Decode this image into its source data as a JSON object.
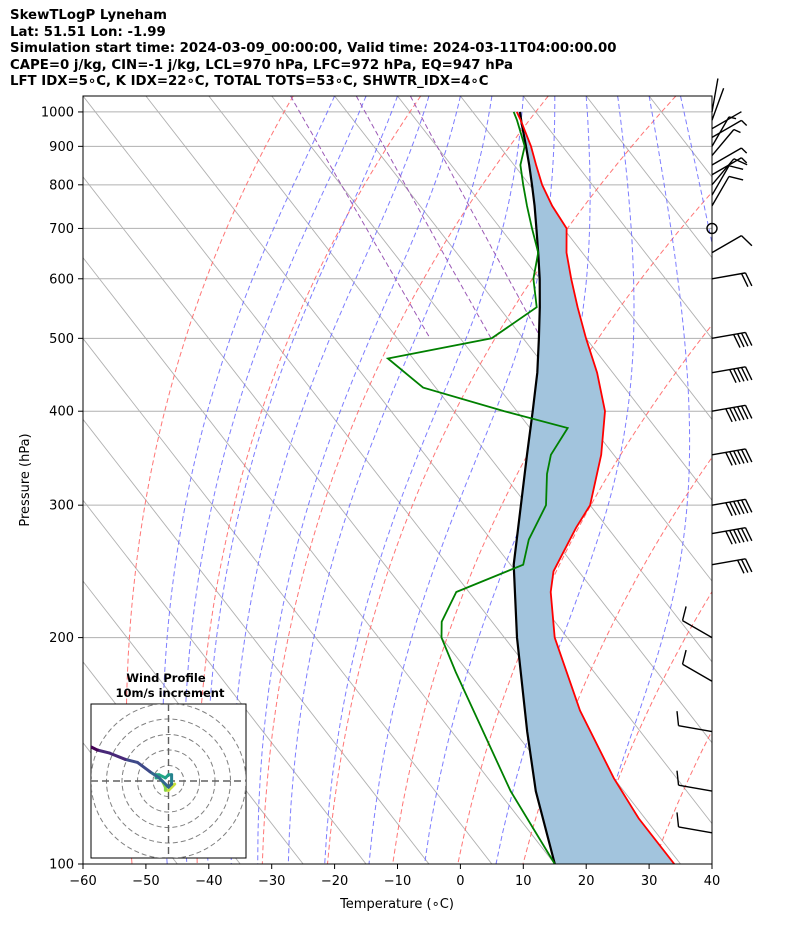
{
  "header": {
    "line1": "SkewTLogP Lyneham",
    "line2": "Lat: 51.51   Lon: -1.99",
    "line3": "Simulation start time: 2024-03-09_00:00:00, Valid time: 2024-03-11T04:00:00.00",
    "line4": "CAPE=0 j/kg, CIN=-1 j/kg, LCL=970 hPa, LFC=972 hPa, EQ=947 hPa",
    "line5": "LFT IDX=5∘C, K IDX=22∘C, TOTAL TOTS=53∘C, SHWTR_IDX=4∘C"
  },
  "colors": {
    "temperature": "#ff0000",
    "dewpoint": "#008000",
    "parcel": "#000000",
    "cape_fill": "#a2c4dd",
    "dry_adiabat": "#ff6666",
    "moist_adiabat": "#6666ff",
    "mixing_ratio": "#9b59b6",
    "isotherm": "#b0b0b0"
  },
  "chart_data": {
    "type": "line",
    "subtype": "skew-t log-p",
    "xlabel": "Temperature (∘C)",
    "ylabel": "Pressure (hPa)",
    "xlim": [
      -60,
      40
    ],
    "ylim": [
      1050,
      100
    ],
    "y_scale": "log",
    "x_ticks": [
      "−60",
      "−50",
      "−40",
      "−30",
      "−20",
      "−10",
      "0",
      "10",
      "20",
      "30",
      "40"
    ],
    "y_ticks": [
      100,
      200,
      300,
      400,
      500,
      600,
      700,
      800,
      900,
      1000
    ],
    "grid": true,
    "series": [
      {
        "role": "temperature",
        "points": [
          [
            1000,
            7.0
          ],
          [
            975,
            6.6
          ],
          [
            900,
            5.0
          ],
          [
            850,
            3.5
          ],
          [
            800,
            2.0
          ],
          [
            750,
            1.0
          ],
          [
            700,
            0.5
          ],
          [
            650,
            -2.5
          ],
          [
            600,
            -5.0
          ],
          [
            550,
            -7.5
          ],
          [
            500,
            -10.0
          ],
          [
            450,
            -12.5
          ],
          [
            400,
            -16.0
          ],
          [
            350,
            -22.0
          ],
          [
            300,
            -30.0
          ],
          [
            280,
            -35.0
          ],
          [
            260,
            -40.0
          ],
          [
            245,
            -44.0
          ],
          [
            230,
            -47.0
          ],
          [
            200,
            -52.0
          ],
          [
            160,
            -57.0
          ],
          [
            130,
            -60.0
          ],
          [
            115,
            -61.0
          ],
          [
            100,
            -61.0
          ]
        ]
      },
      {
        "role": "dewpoint",
        "points": [
          [
            1000,
            6.5
          ],
          [
            975,
            6.0
          ],
          [
            900,
            4.0
          ],
          [
            850,
            1.0
          ],
          [
            800,
            -1.0
          ],
          [
            750,
            -3.0
          ],
          [
            700,
            -5.0
          ],
          [
            650,
            -7.0
          ],
          [
            600,
            -11.0
          ],
          [
            550,
            -14.0
          ],
          [
            500,
            -25.0
          ],
          [
            470,
            -44.0
          ],
          [
            430,
            -42.0
          ],
          [
            400,
            -32.0
          ],
          [
            380,
            -24.0
          ],
          [
            350,
            -30.0
          ],
          [
            330,
            -33.0
          ],
          [
            300,
            -37.0
          ],
          [
            270,
            -44.0
          ],
          [
            250,
            -48.0
          ],
          [
            230,
            -62.0
          ],
          [
            210,
            -68.0
          ],
          [
            200,
            -70.0
          ],
          [
            180,
            -72.0
          ],
          [
            150,
            -75.0
          ],
          [
            125,
            -78.0
          ],
          [
            100,
            -80.0
          ]
        ]
      },
      {
        "role": "parcel",
        "points": [
          [
            1000,
            7.5
          ],
          [
            970,
            6.5
          ],
          [
            900,
            4.2
          ],
          [
            850,
            2.4
          ],
          [
            800,
            0.4
          ],
          [
            750,
            -1.8
          ],
          [
            700,
            -4.3
          ],
          [
            650,
            -7.0
          ],
          [
            600,
            -10.0
          ],
          [
            550,
            -13.5
          ],
          [
            500,
            -17.5
          ],
          [
            450,
            -22.0
          ],
          [
            400,
            -27.5
          ],
          [
            350,
            -33.8
          ],
          [
            300,
            -41.0
          ],
          [
            250,
            -49.5
          ],
          [
            200,
            -58.0
          ],
          [
            150,
            -68.0
          ],
          [
            125,
            -74.0
          ],
          [
            100,
            -80.0
          ]
        ]
      }
    ],
    "wind_barbs": [
      {
        "p": 1000,
        "dir": 10,
        "spd": 2
      },
      {
        "p": 975,
        "dir": 20,
        "spd": 3
      },
      {
        "p": 950,
        "dir": 60,
        "spd": 4
      },
      {
        "p": 925,
        "dir": 60,
        "spd": 5
      },
      {
        "p": 900,
        "dir": 30,
        "spd": 6
      },
      {
        "p": 875,
        "dir": 40,
        "spd": 7
      },
      {
        "p": 850,
        "dir": 60,
        "spd": 8
      },
      {
        "p": 825,
        "dir": 60,
        "spd": 8
      },
      {
        "p": 800,
        "dir": 40,
        "spd": 10
      },
      {
        "p": 775,
        "dir": 30,
        "spd": 10
      },
      {
        "p": 750,
        "dir": 30,
        "spd": 10
      },
      {
        "p": 700,
        "dir": 0,
        "spd": 0
      },
      {
        "p": 650,
        "dir": 60,
        "spd": 10
      },
      {
        "p": 600,
        "dir": 80,
        "spd": 20
      },
      {
        "p": 500,
        "dir": 80,
        "spd": 40
      },
      {
        "p": 450,
        "dir": 80,
        "spd": 50
      },
      {
        "p": 400,
        "dir": 80,
        "spd": 60
      },
      {
        "p": 350,
        "dir": 80,
        "spd": 60
      },
      {
        "p": 300,
        "dir": 80,
        "spd": 60
      },
      {
        "p": 275,
        "dir": 80,
        "spd": 60
      },
      {
        "p": 250,
        "dir": 80,
        "spd": 30
      },
      {
        "p": 200,
        "dir": 300,
        "spd": 10
      },
      {
        "p": 175,
        "dir": 300,
        "spd": 10
      },
      {
        "p": 150,
        "dir": 280,
        "spd": 10
      },
      {
        "p": 125,
        "dir": 280,
        "spd": 10
      },
      {
        "p": 110,
        "dir": 280,
        "spd": 10
      }
    ],
    "hodograph": {
      "title": "Wind Profile",
      "subtitle": "10m/s increment",
      "points": [
        [
          2,
          -1
        ],
        [
          1,
          -2
        ],
        [
          0,
          -3
        ],
        [
          -1,
          -3
        ],
        [
          -1,
          -2
        ],
        [
          -2,
          0
        ],
        [
          -3,
          1
        ],
        [
          -4,
          1
        ],
        [
          -4,
          2
        ],
        [
          -3,
          2
        ],
        [
          -1,
          1
        ],
        [
          0,
          2
        ],
        [
          1,
          2
        ],
        [
          1,
          0
        ],
        [
          1,
          -1
        ],
        [
          0,
          -2
        ],
        [
          -3,
          1
        ],
        [
          -6,
          3
        ],
        [
          -10,
          6
        ],
        [
          -14,
          7
        ],
        [
          -19,
          9
        ],
        [
          -23,
          10
        ],
        [
          -25,
          11
        ]
      ],
      "rings": [
        10,
        20,
        30,
        40,
        50
      ]
    }
  }
}
